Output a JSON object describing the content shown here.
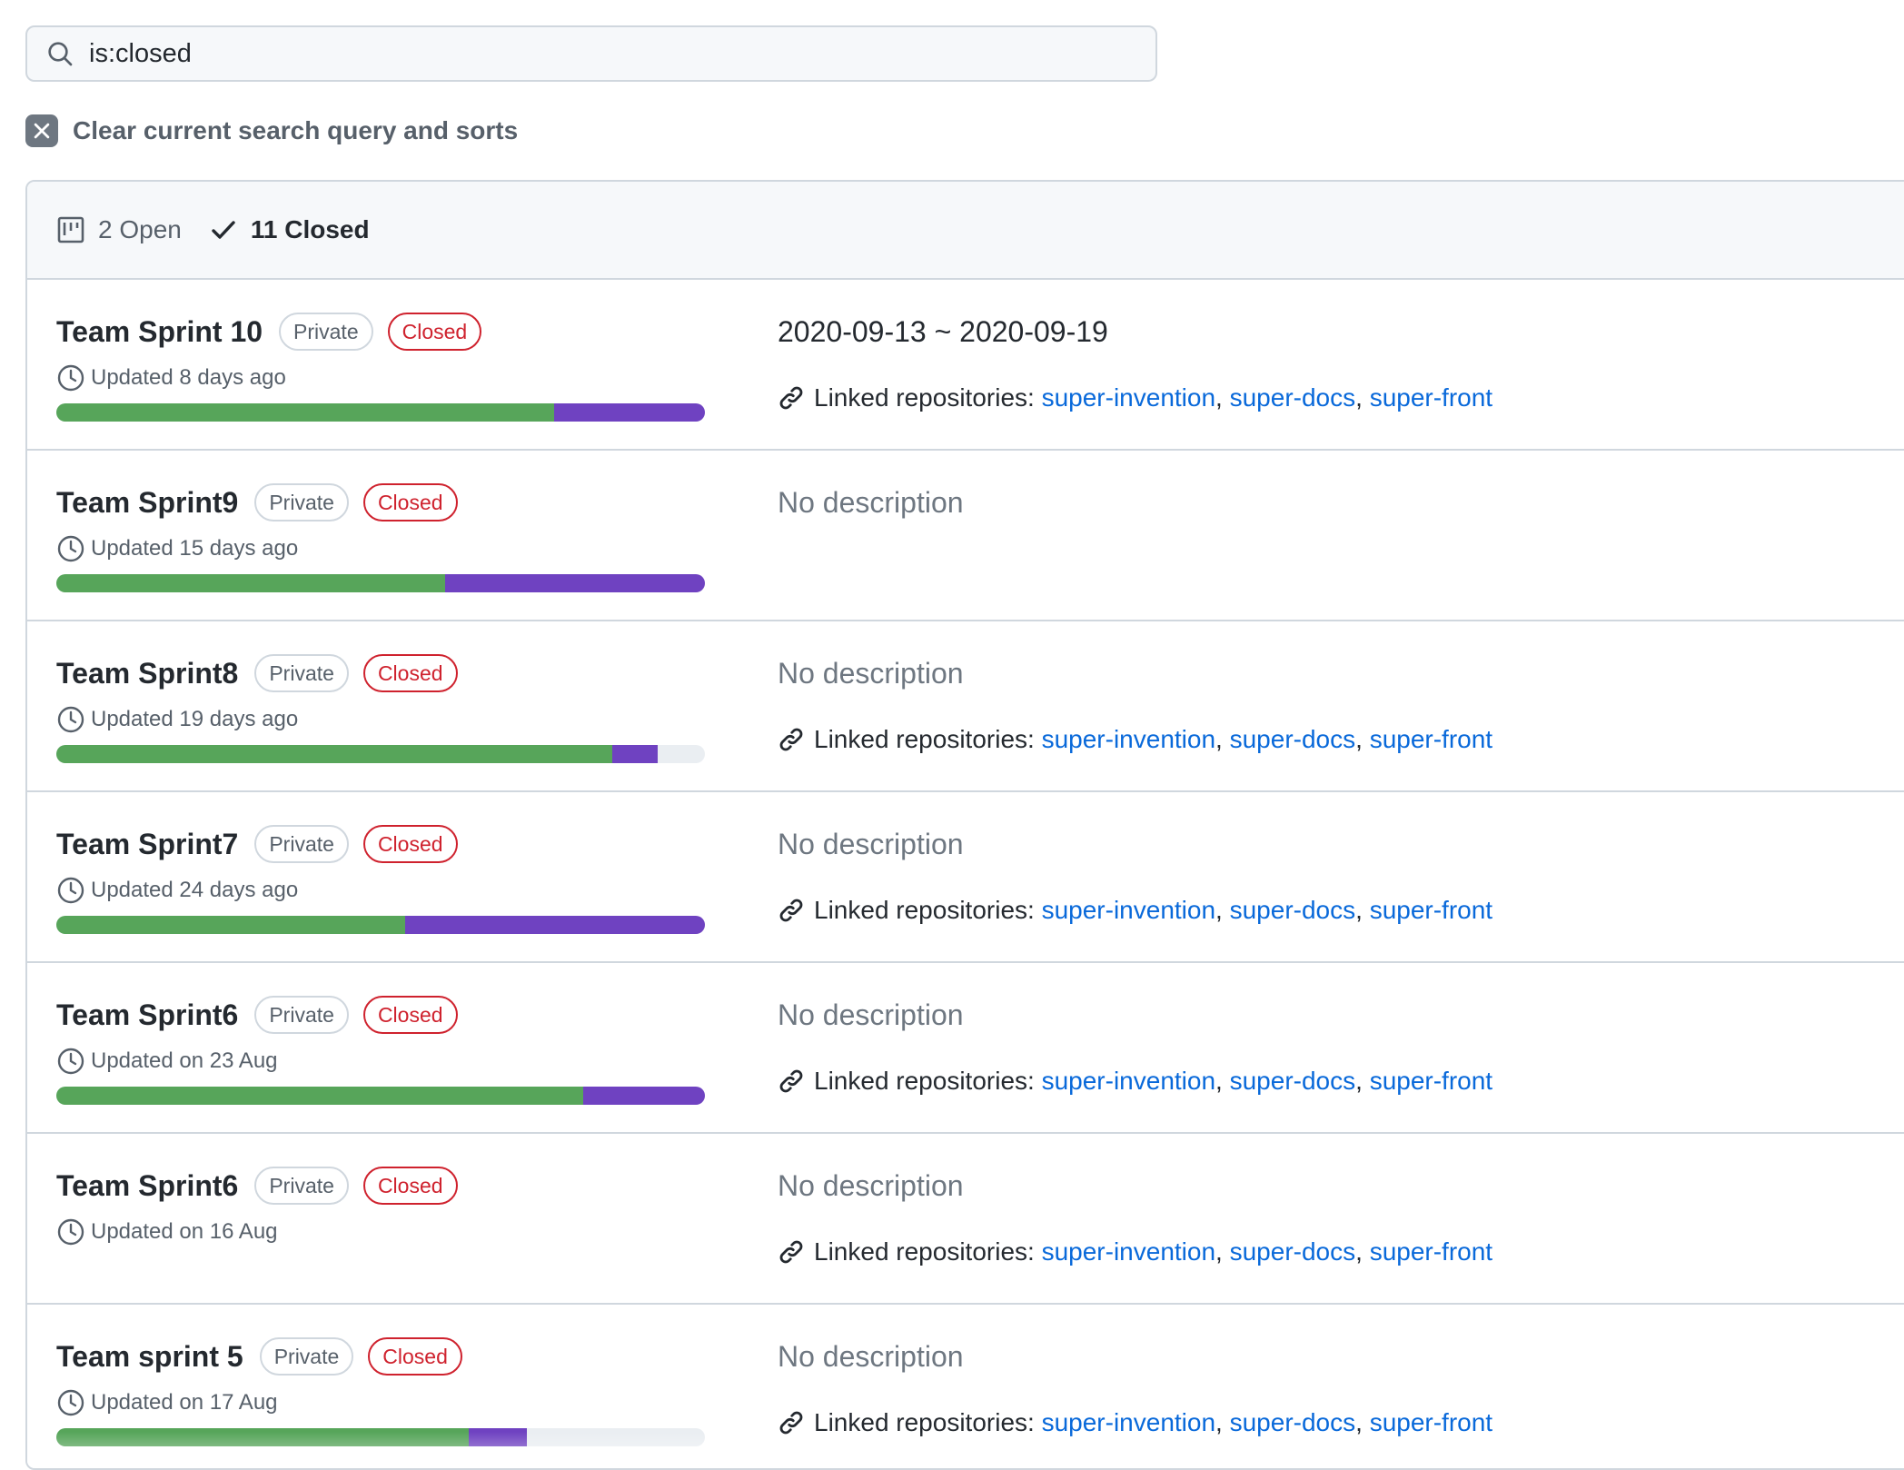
{
  "search": {
    "value": "is:closed"
  },
  "clear_label": "Clear current search query and sorts",
  "states": {
    "open": "2 Open",
    "closed": "11 Closed"
  },
  "linked_label": "Linked repositories:",
  "colors": {
    "done": "#57a55a",
    "in_progress": "#6f42c1",
    "closed_badge": "#cf222e",
    "link": "#0969da"
  },
  "projects": [
    {
      "title": "Team Sprint 10",
      "visibility": "Private",
      "status": "Closed",
      "updated": "Updated 8 days ago",
      "progress": {
        "done_pct": 76.8,
        "in_progress_pct": 23.2
      },
      "description": "2020-09-13 ~ 2020-09-19",
      "has_description": true,
      "repos": [
        "super-invention",
        "super-docs",
        "super-front"
      ]
    },
    {
      "title": "Team Sprint9",
      "visibility": "Private",
      "status": "Closed",
      "updated": "Updated 15 days ago",
      "progress": {
        "done_pct": 60.0,
        "in_progress_pct": 40.0
      },
      "description": "No description",
      "has_description": false,
      "repos": []
    },
    {
      "title": "Team Sprint8",
      "visibility": "Private",
      "status": "Closed",
      "updated": "Updated 19 days ago",
      "progress": {
        "done_pct": 85.7,
        "in_progress_pct": 7.0
      },
      "description": "No description",
      "has_description": false,
      "repos": [
        "super-invention",
        "super-docs",
        "super-front"
      ]
    },
    {
      "title": "Team Sprint7",
      "visibility": "Private",
      "status": "Closed",
      "updated": "Updated 24 days ago",
      "progress": {
        "done_pct": 53.8,
        "in_progress_pct": 46.2
      },
      "description": "No description",
      "has_description": false,
      "repos": [
        "super-invention",
        "super-docs",
        "super-front"
      ]
    },
    {
      "title": "Team Sprint6",
      "visibility": "Private",
      "status": "Closed",
      "updated": "Updated on 23 Aug",
      "progress": {
        "done_pct": 81.3,
        "in_progress_pct": 18.7
      },
      "description": "No description",
      "has_description": false,
      "repos": [
        "super-invention",
        "super-docs",
        "super-front"
      ]
    },
    {
      "title": "Team Sprint6",
      "visibility": "Private",
      "status": "Closed",
      "updated": "Updated on 16 Aug",
      "progress": null,
      "description": "No description",
      "has_description": false,
      "repos": [
        "super-invention",
        "super-docs",
        "super-front"
      ]
    },
    {
      "title": "Team sprint 5",
      "visibility": "Private",
      "status": "Closed",
      "updated": "Updated on 17 Aug",
      "progress": {
        "done_pct": 63.6,
        "in_progress_pct": 9.0
      },
      "description": "No description",
      "has_description": false,
      "repos": [
        "super-invention",
        "super-docs",
        "super-front"
      ]
    }
  ]
}
